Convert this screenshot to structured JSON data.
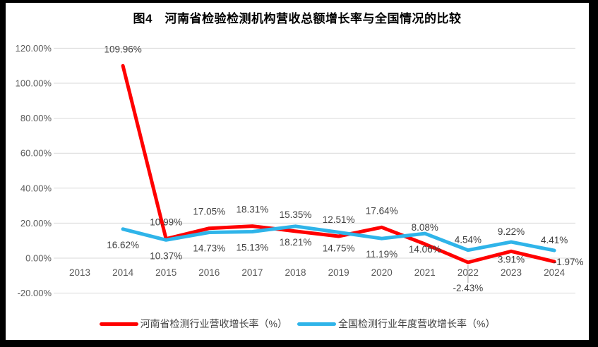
{
  "chart_data": {
    "type": "line",
    "title": "图4　河南省检验检测机构营收总额增长率与全国情况的比较",
    "categories": [
      "2013",
      "2014",
      "2015",
      "2016",
      "2017",
      "2018",
      "2019",
      "2020",
      "2021",
      "2022",
      "2023",
      "2024"
    ],
    "series": [
      {
        "name": "河南省检测行业营收增长率（%）",
        "color": "#FF0000",
        "values": [
          null,
          109.96,
          10.99,
          17.05,
          18.31,
          15.35,
          12.51,
          17.64,
          8.08,
          -2.43,
          3.91,
          -1.97
        ],
        "data_labels": [
          null,
          "109.96%",
          "10.99%",
          "17.05%",
          "18.31%",
          "15.35%",
          "12.51%",
          "17.64%",
          "8.08%",
          "-2.43%",
          "3.91%",
          "-1.97%"
        ],
        "label_positions": [
          null,
          "above",
          "above",
          "above",
          "above",
          "above",
          "above",
          "above",
          "above",
          "below-far",
          "below-near",
          "right"
        ]
      },
      {
        "name": "全国检测行业年度营收增长率（%）",
        "color": "#2FB4E9",
        "values": [
          null,
          16.62,
          10.37,
          14.73,
          15.13,
          18.21,
          14.75,
          11.19,
          14.06,
          4.54,
          9.22,
          4.41
        ],
        "data_labels": [
          null,
          "16.62%",
          "10.37%",
          "14.73%",
          "15.13%",
          "18.21%",
          "14.75%",
          "11.19%",
          "14.06%",
          "4.54%",
          "9.22%",
          "4.41%"
        ],
        "label_positions": [
          null,
          "below",
          "below",
          "below",
          "below",
          "below",
          "below",
          "below",
          "below",
          "above-near",
          "above-near",
          "above-near"
        ]
      }
    ],
    "y_axis": {
      "min": -20,
      "max": 120,
      "step": 20,
      "tick_labels": [
        "120.00%",
        "100.00%",
        "80.00%",
        "60.00%",
        "40.00%",
        "20.00%",
        "0.00%",
        "-20.00%"
      ]
    },
    "x_axis": {
      "tick_labels": [
        "2013",
        "2014",
        "2015",
        "2016",
        "2017",
        "2018",
        "2019",
        "2020",
        "2021",
        "2022",
        "2023",
        "2024"
      ]
    },
    "grid": true,
    "legend_position": "bottom"
  },
  "colors": {
    "henan_line": "#FF0000",
    "national_line": "#2FB4E9",
    "gridline": "#D9D9D9",
    "leader_line": "#A6A6A6",
    "axis_text": "#595959",
    "data_label_text": "#404040",
    "frame_border": "#000000",
    "background": "#FFFFFF"
  }
}
